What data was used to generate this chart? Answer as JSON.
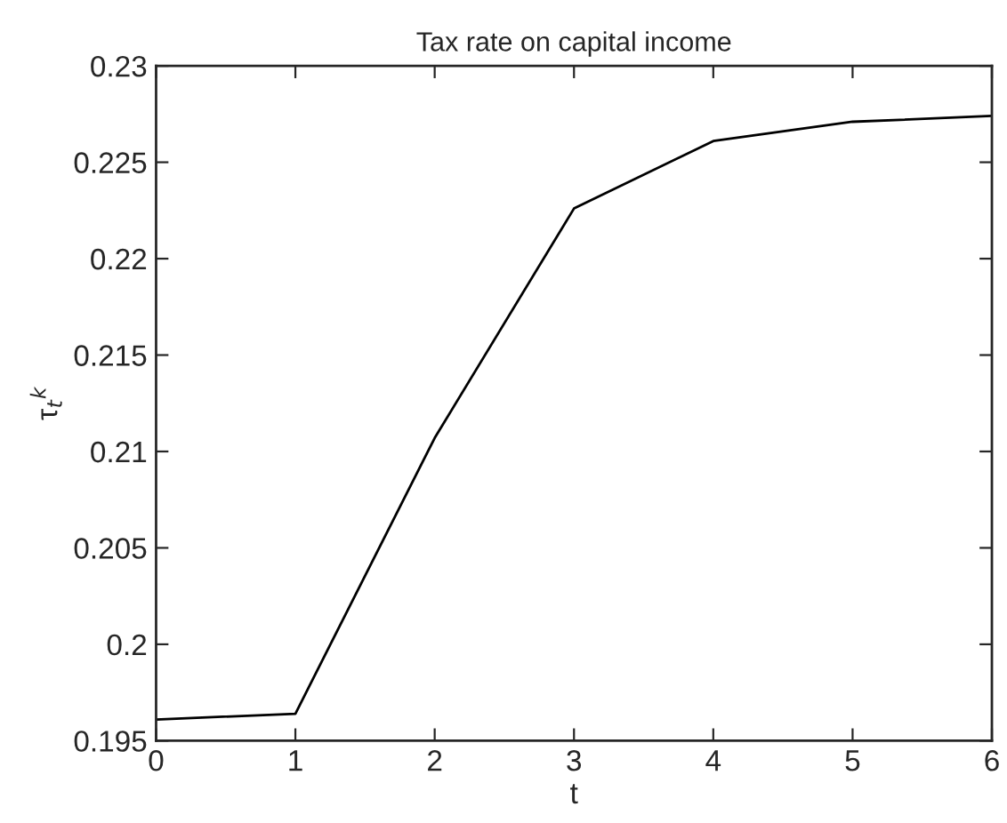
{
  "chart_data": {
    "type": "line",
    "title": "Tax rate on capital income",
    "xlabel": "t",
    "ylabel": "τ$_{t}$$^{k}$",
    "x": [
      0,
      1,
      2,
      3,
      4,
      5,
      6
    ],
    "series": [
      {
        "color": "#000000",
        "values": [
          0.1961,
          0.1964,
          0.2107,
          0.2226,
          0.2261,
          0.2271,
          0.2274
        ]
      }
    ],
    "xlim": [
      0,
      6
    ],
    "xticks": [
      0,
      1,
      2,
      3,
      4,
      5,
      6
    ],
    "ylim": [
      0.195,
      0.23
    ],
    "yticks": [
      0.195,
      0.2,
      0.205,
      0.21,
      0.215,
      0.22,
      0.225,
      0.23
    ],
    "grid": false,
    "legend": false,
    "marker": "none",
    "line_style": "solid"
  }
}
